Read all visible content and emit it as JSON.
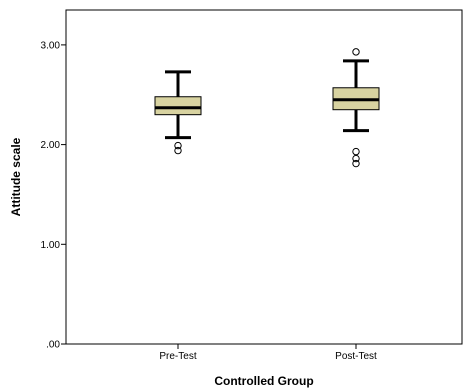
{
  "chart_data": {
    "type": "boxplot",
    "xlabel": "Controlled Group",
    "ylabel": "Attitude scale",
    "ylim": [
      0,
      3.35
    ],
    "y_ticks": [
      0,
      1,
      2,
      3
    ],
    "y_tick_labels": [
      ".00",
      "1.00",
      "2.00",
      "3.00"
    ],
    "categories": [
      "Pre-Test",
      "Post-Test"
    ],
    "box_color": "#d8d3a1",
    "grid": false,
    "boxes": [
      {
        "category": "Pre-Test",
        "whisker_low": 2.07,
        "q1": 2.3,
        "median": 2.37,
        "q3": 2.48,
        "whisker_high": 2.73,
        "outliers": [
          1.99,
          1.94
        ]
      },
      {
        "category": "Post-Test",
        "whisker_low": 2.14,
        "q1": 2.35,
        "median": 2.45,
        "q3": 2.57,
        "whisker_high": 2.84,
        "outliers": [
          2.93,
          1.93,
          1.86,
          1.81
        ]
      }
    ]
  }
}
